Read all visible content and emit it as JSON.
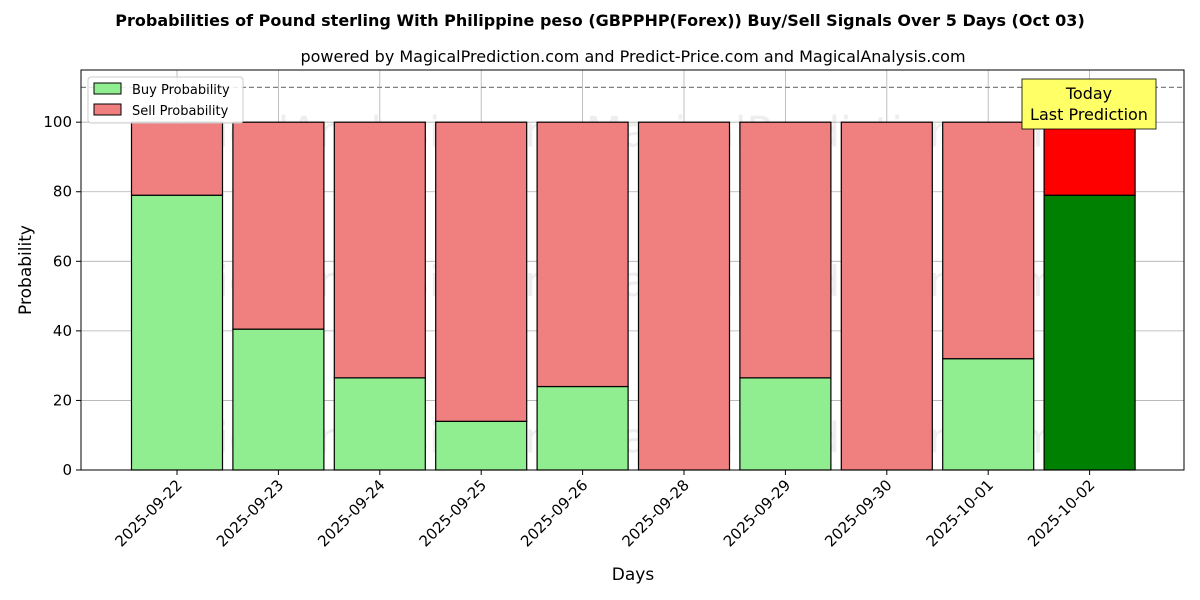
{
  "chart_data": {
    "type": "bar",
    "stacked": true,
    "title": "Probabilities of Pound sterling With Philippine peso (GBPPHP(Forex)) Buy/Sell Signals Over 5 Days (Oct 03)",
    "subtitle": "powered by MagicalPrediction.com and Predict-Price.com and MagicalAnalysis.com",
    "xlabel": "Days",
    "ylabel": "Probability",
    "ylim": [
      0,
      115
    ],
    "yticks": [
      0,
      20,
      40,
      60,
      80,
      100
    ],
    "grid": true,
    "legend_position": "top-left",
    "threshold_line": 110,
    "categories": [
      "2025-09-22",
      "2025-09-23",
      "2025-09-24",
      "2025-09-25",
      "2025-09-26",
      "2025-09-28",
      "2025-09-29",
      "2025-09-30",
      "2025-10-01",
      "2025-10-02"
    ],
    "series": [
      {
        "name": "Buy Probability",
        "color": "#90ee90",
        "values": [
          79,
          40.5,
          26.5,
          14,
          24,
          0,
          26.5,
          0,
          32,
          79
        ]
      },
      {
        "name": "Sell Probability",
        "color": "#f08080",
        "values": [
          21,
          59.5,
          73.5,
          86,
          76,
          100,
          73.5,
          100,
          68,
          21
        ]
      }
    ],
    "highlight": {
      "index": 9,
      "buy_color": "#008000",
      "sell_color": "#ff0000"
    },
    "annotation": {
      "lines": [
        "Today",
        "Last Prediction"
      ],
      "background": "#ffff66"
    },
    "watermarks": [
      "MagicalAnalysis.com",
      "MagicalPrediction.com"
    ]
  }
}
